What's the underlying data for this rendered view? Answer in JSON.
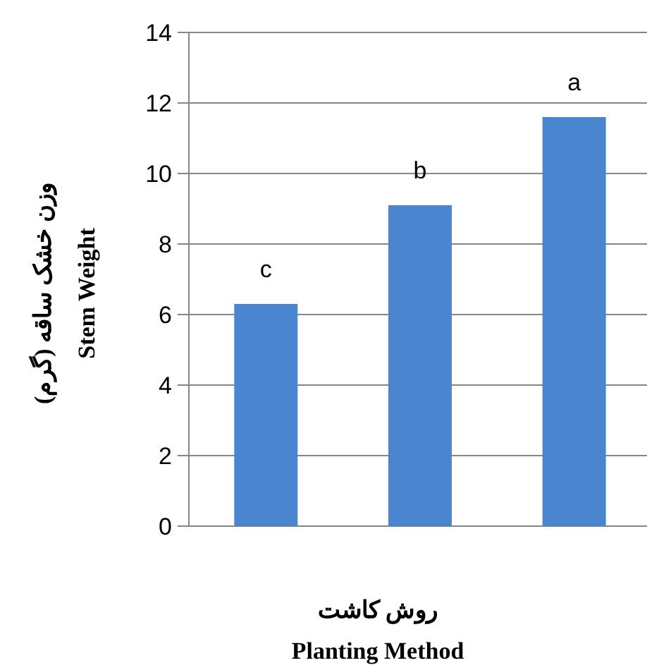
{
  "chart_data": {
    "type": "bar",
    "xlabel": "روش کاشت\nPlanting Method",
    "ylabel": "وزن خشک ساقه (گرم)\nStem Weight",
    "categories": [
      null,
      null,
      null
    ],
    "values": [
      6.3,
      9.1,
      11.6
    ],
    "color": "#4a86d0",
    "ylim": [
      0,
      14
    ],
    "yticks": [
      0,
      2,
      4,
      6,
      8,
      10,
      12,
      14
    ],
    "grid": "y",
    "annotations": [
      "c",
      "b",
      "a"
    ]
  }
}
